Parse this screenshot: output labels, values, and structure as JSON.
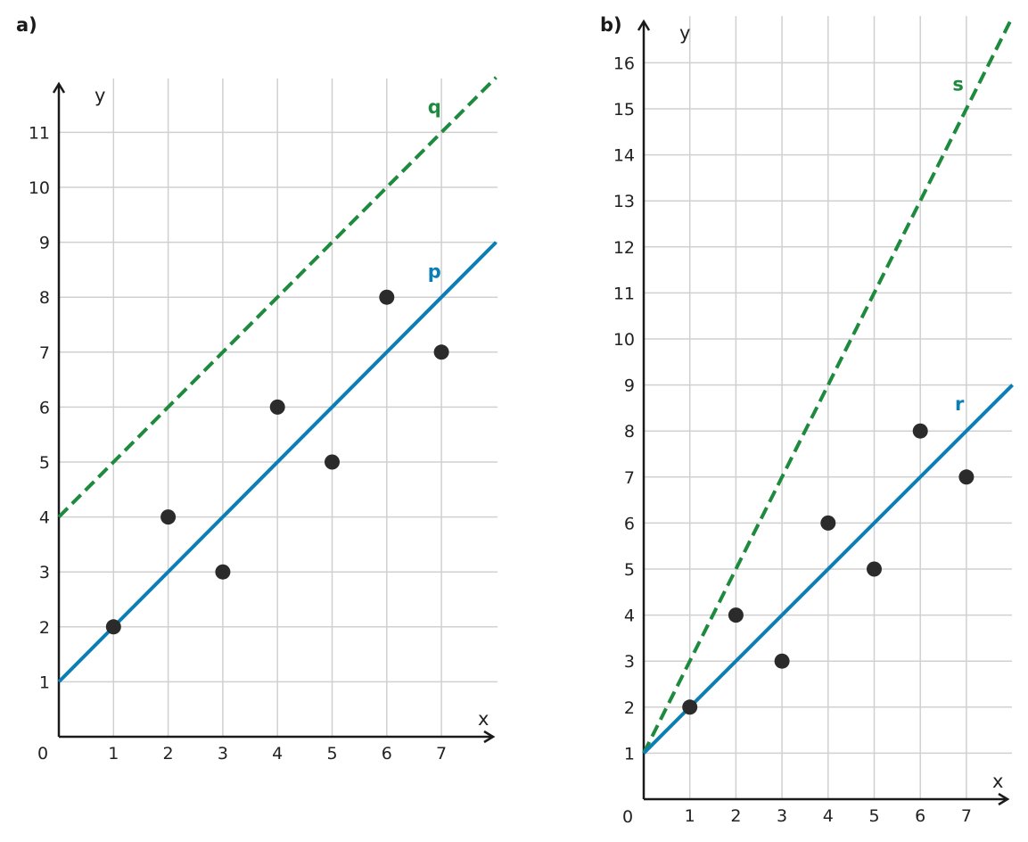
{
  "chart_data": [
    {
      "type": "scatter",
      "panel_label": "a)",
      "xlabel": "x",
      "ylabel": "y",
      "origin_label": "0",
      "xlim": [
        0,
        8
      ],
      "ylim": [
        0,
        12
      ],
      "x_ticks": [
        1,
        2,
        3,
        4,
        5,
        6,
        7
      ],
      "y_ticks": [
        1,
        2,
        3,
        4,
        5,
        6,
        7,
        8,
        9,
        10,
        11
      ],
      "grid": true,
      "points": [
        {
          "x": 1,
          "y": 2
        },
        {
          "x": 2,
          "y": 4
        },
        {
          "x": 3,
          "y": 3
        },
        {
          "x": 4,
          "y": 6
        },
        {
          "x": 5,
          "y": 5
        },
        {
          "x": 6,
          "y": 8
        },
        {
          "x": 7,
          "y": 7
        }
      ],
      "lines": [
        {
          "name": "q",
          "slope": 1,
          "intercept": 4,
          "color": "#1e8a3e",
          "style": "dashed",
          "label_x": 6.75,
          "label_y": 11.35
        },
        {
          "name": "p",
          "slope": 1,
          "intercept": 1,
          "color": "#0b7fb5",
          "style": "solid",
          "label_x": 6.75,
          "label_y": 8.35
        }
      ]
    },
    {
      "type": "scatter",
      "panel_label": "b)",
      "xlabel": "x",
      "ylabel": "y",
      "origin_label": "0",
      "xlim": [
        0,
        8
      ],
      "ylim": [
        0,
        17
      ],
      "x_ticks": [
        1,
        2,
        3,
        4,
        5,
        6,
        7
      ],
      "y_ticks": [
        1,
        2,
        3,
        4,
        5,
        6,
        7,
        8,
        9,
        10,
        11,
        12,
        13,
        14,
        15,
        16
      ],
      "grid": true,
      "points": [
        {
          "x": 1,
          "y": 2
        },
        {
          "x": 2,
          "y": 4
        },
        {
          "x": 3,
          "y": 3
        },
        {
          "x": 4,
          "y": 6
        },
        {
          "x": 5,
          "y": 5
        },
        {
          "x": 6,
          "y": 8
        },
        {
          "x": 7,
          "y": 7
        }
      ],
      "lines": [
        {
          "name": "s",
          "slope": 2,
          "intercept": 1,
          "color": "#1e8a3e",
          "style": "dashed",
          "label_x": 6.7,
          "label_y": 15.4
        },
        {
          "name": "r",
          "slope": 1,
          "intercept": 1,
          "color": "#0b7fb5",
          "style": "solid",
          "label_x": 6.75,
          "label_y": 8.45
        }
      ]
    }
  ]
}
